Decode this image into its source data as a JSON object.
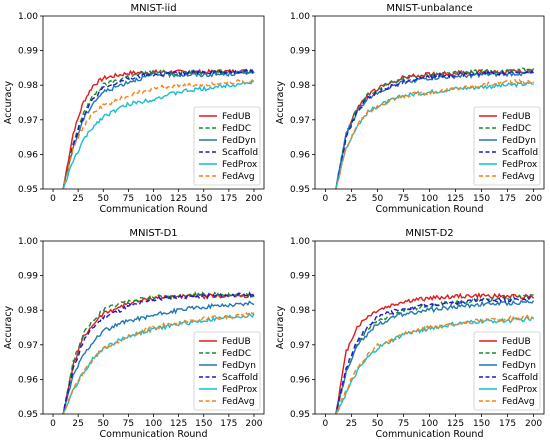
{
  "chart_data": [
    {
      "type": "line",
      "title": "MNIST-iid",
      "xlabel": "Communication Round",
      "ylabel": "Accuracy",
      "xlim": [
        -10,
        210
      ],
      "ylim": [
        0.95,
        1.0
      ],
      "xticks": [
        "0",
        "25",
        "50",
        "75",
        "100",
        "125",
        "150",
        "175",
        "200"
      ],
      "yticks": [
        "0.95",
        "0.96",
        "0.97",
        "0.98",
        "0.99",
        "1.00"
      ],
      "legend_position": "lower-right",
      "x": [
        10,
        20,
        30,
        40,
        50,
        75,
        100,
        125,
        150,
        175,
        200
      ],
      "series": [
        {
          "name": "FedUB",
          "color": "#e41a1c",
          "dash": "solid",
          "values": [
            0.95,
            0.966,
            0.975,
            0.98,
            0.982,
            0.9835,
            0.9838,
            0.9838,
            0.9838,
            0.984,
            0.984
          ]
        },
        {
          "name": "FedDC",
          "color": "#1a8a2a",
          "dash": "dashed",
          "values": [
            0.95,
            0.963,
            0.972,
            0.977,
            0.98,
            0.9825,
            0.9838,
            0.9835,
            0.9838,
            0.984,
            0.984
          ]
        },
        {
          "name": "FedDyn",
          "color": "#1f77b4",
          "dash": "solid",
          "values": [
            0.95,
            0.962,
            0.97,
            0.975,
            0.978,
            0.981,
            0.983,
            0.983,
            0.983,
            0.9832,
            0.984
          ]
        },
        {
          "name": "Scaffold",
          "color": "#1a1acd",
          "dash": "dashed",
          "values": [
            0.95,
            0.963,
            0.971,
            0.976,
            0.979,
            0.982,
            0.983,
            0.9835,
            0.9838,
            0.984,
            0.9842
          ]
        },
        {
          "name": "FedProx",
          "color": "#17becf",
          "dash": "solid",
          "values": [
            0.95,
            0.958,
            0.964,
            0.968,
            0.971,
            0.9745,
            0.976,
            0.978,
            0.979,
            0.98,
            0.981
          ]
        },
        {
          "name": "FedAvg",
          "color": "#ff7f0e",
          "dash": "dashed",
          "values": [
            0.95,
            0.962,
            0.968,
            0.972,
            0.974,
            0.977,
            0.979,
            0.98,
            0.98,
            0.981,
            0.981
          ]
        }
      ]
    },
    {
      "type": "line",
      "title": "MNIST-unbalance",
      "xlabel": "Communication Round",
      "ylabel": "Accuracy",
      "xlim": [
        -10,
        210
      ],
      "ylim": [
        0.95,
        1.0
      ],
      "xticks": [
        "0",
        "25",
        "50",
        "75",
        "100",
        "125",
        "150",
        "175",
        "200"
      ],
      "yticks": [
        "0.95",
        "0.96",
        "0.97",
        "0.98",
        "0.99",
        "1.00"
      ],
      "legend_position": "lower-right",
      "x": [
        10,
        20,
        30,
        40,
        50,
        75,
        100,
        125,
        150,
        175,
        200
      ],
      "series": [
        {
          "name": "FedUB",
          "color": "#e41a1c",
          "dash": "solid",
          "values": [
            0.95,
            0.966,
            0.973,
            0.977,
            0.979,
            0.9822,
            0.9832,
            0.9835,
            0.9838,
            0.984,
            0.984
          ]
        },
        {
          "name": "FedDC",
          "color": "#1a8a2a",
          "dash": "dashed",
          "values": [
            0.95,
            0.966,
            0.973,
            0.977,
            0.979,
            0.982,
            0.983,
            0.9835,
            0.984,
            0.984,
            0.9845
          ]
        },
        {
          "name": "FedDyn",
          "color": "#1f77b4",
          "dash": "solid",
          "values": [
            0.95,
            0.966,
            0.972,
            0.976,
            0.978,
            0.981,
            0.982,
            0.9825,
            0.983,
            0.9832,
            0.9835
          ]
        },
        {
          "name": "Scaffold",
          "color": "#1a1acd",
          "dash": "dashed",
          "values": [
            0.95,
            0.965,
            0.972,
            0.976,
            0.978,
            0.981,
            0.9825,
            0.983,
            0.9835,
            0.9835,
            0.9835
          ]
        },
        {
          "name": "FedProx",
          "color": "#17becf",
          "dash": "solid",
          "values": [
            0.95,
            0.962,
            0.968,
            0.972,
            0.974,
            0.977,
            0.978,
            0.979,
            0.9795,
            0.98,
            0.9805
          ]
        },
        {
          "name": "FedAvg",
          "color": "#ff7f0e",
          "dash": "dashed",
          "values": [
            0.95,
            0.962,
            0.968,
            0.972,
            0.974,
            0.977,
            0.978,
            0.979,
            0.98,
            0.981,
            0.981
          ]
        }
      ]
    },
    {
      "type": "line",
      "title": "MNIST-D1",
      "xlabel": "Communication Round",
      "ylabel": "Accuracy",
      "xlim": [
        -10,
        210
      ],
      "ylim": [
        0.95,
        1.0
      ],
      "xticks": [
        "0",
        "25",
        "50",
        "75",
        "100",
        "125",
        "150",
        "175",
        "200"
      ],
      "yticks": [
        "0.95",
        "0.96",
        "0.97",
        "0.98",
        "0.99",
        "1.00"
      ],
      "legend_position": "lower-right",
      "x": [
        10,
        20,
        30,
        40,
        50,
        75,
        100,
        125,
        150,
        175,
        200
      ],
      "series": [
        {
          "name": "FedUB",
          "color": "#e41a1c",
          "dash": "solid",
          "values": [
            0.95,
            0.964,
            0.972,
            0.976,
            0.979,
            0.982,
            0.9835,
            0.984,
            0.984,
            0.9842,
            0.9842
          ]
        },
        {
          "name": "FedDC",
          "color": "#1a8a2a",
          "dash": "dashed",
          "values": [
            0.95,
            0.965,
            0.973,
            0.977,
            0.98,
            0.9828,
            0.984,
            0.9842,
            0.9845,
            0.9845,
            0.9845
          ]
        },
        {
          "name": "FedDyn",
          "color": "#1f77b4",
          "dash": "solid",
          "values": [
            0.95,
            0.961,
            0.967,
            0.971,
            0.974,
            0.977,
            0.9785,
            0.98,
            0.981,
            0.9815,
            0.982
          ]
        },
        {
          "name": "Scaffold",
          "color": "#1a1acd",
          "dash": "dashed",
          "values": [
            0.95,
            0.963,
            0.971,
            0.975,
            0.978,
            0.981,
            0.983,
            0.9838,
            0.984,
            0.9842,
            0.9845
          ]
        },
        {
          "name": "FedProx",
          "color": "#17becf",
          "dash": "solid",
          "values": [
            0.95,
            0.957,
            0.962,
            0.966,
            0.969,
            0.9725,
            0.9745,
            0.976,
            0.977,
            0.978,
            0.9785
          ]
        },
        {
          "name": "FedAvg",
          "color": "#ff7f0e",
          "dash": "dashed",
          "values": [
            0.95,
            0.957,
            0.962,
            0.966,
            0.969,
            0.9725,
            0.975,
            0.9765,
            0.9775,
            0.978,
            0.979
          ]
        }
      ]
    },
    {
      "type": "line",
      "title": "MNIST-D2",
      "xlabel": "Communication Round",
      "ylabel": "Accuracy",
      "xlim": [
        -10,
        210
      ],
      "ylim": [
        0.95,
        1.0
      ],
      "xticks": [
        "0",
        "25",
        "50",
        "75",
        "100",
        "125",
        "150",
        "175",
        "200"
      ],
      "yticks": [
        "0.95",
        "0.96",
        "0.97",
        "0.98",
        "0.99",
        "1.00"
      ],
      "legend_position": "lower-right",
      "x": [
        10,
        20,
        30,
        40,
        50,
        75,
        100,
        125,
        150,
        175,
        200
      ],
      "series": [
        {
          "name": "FedUB",
          "color": "#e41a1c",
          "dash": "solid",
          "values": [
            0.95,
            0.968,
            0.975,
            0.978,
            0.98,
            0.9825,
            0.9835,
            0.984,
            0.9842,
            0.984,
            0.984
          ]
        },
        {
          "name": "FedDC",
          "color": "#1a8a2a",
          "dash": "dashed",
          "values": [
            0.95,
            0.962,
            0.97,
            0.974,
            0.977,
            0.98,
            0.9815,
            0.982,
            0.983,
            0.9835,
            0.984
          ]
        },
        {
          "name": "FedDyn",
          "color": "#1f77b4",
          "dash": "solid",
          "values": [
            0.95,
            0.962,
            0.97,
            0.973,
            0.976,
            0.979,
            0.98,
            0.981,
            0.9818,
            0.982,
            0.9825
          ]
        },
        {
          "name": "Scaffold",
          "color": "#1a1acd",
          "dash": "dashed",
          "values": [
            0.95,
            0.963,
            0.971,
            0.975,
            0.978,
            0.9805,
            0.9815,
            0.982,
            0.983,
            0.983,
            0.9835
          ]
        },
        {
          "name": "FedProx",
          "color": "#17becf",
          "dash": "solid",
          "values": [
            0.95,
            0.956,
            0.962,
            0.966,
            0.969,
            0.973,
            0.9748,
            0.976,
            0.9768,
            0.977,
            0.9775
          ]
        },
        {
          "name": "FedAvg",
          "color": "#ff7f0e",
          "dash": "dashed",
          "values": [
            0.95,
            0.957,
            0.963,
            0.967,
            0.97,
            0.973,
            0.975,
            0.976,
            0.977,
            0.9775,
            0.978
          ]
        }
      ]
    }
  ]
}
